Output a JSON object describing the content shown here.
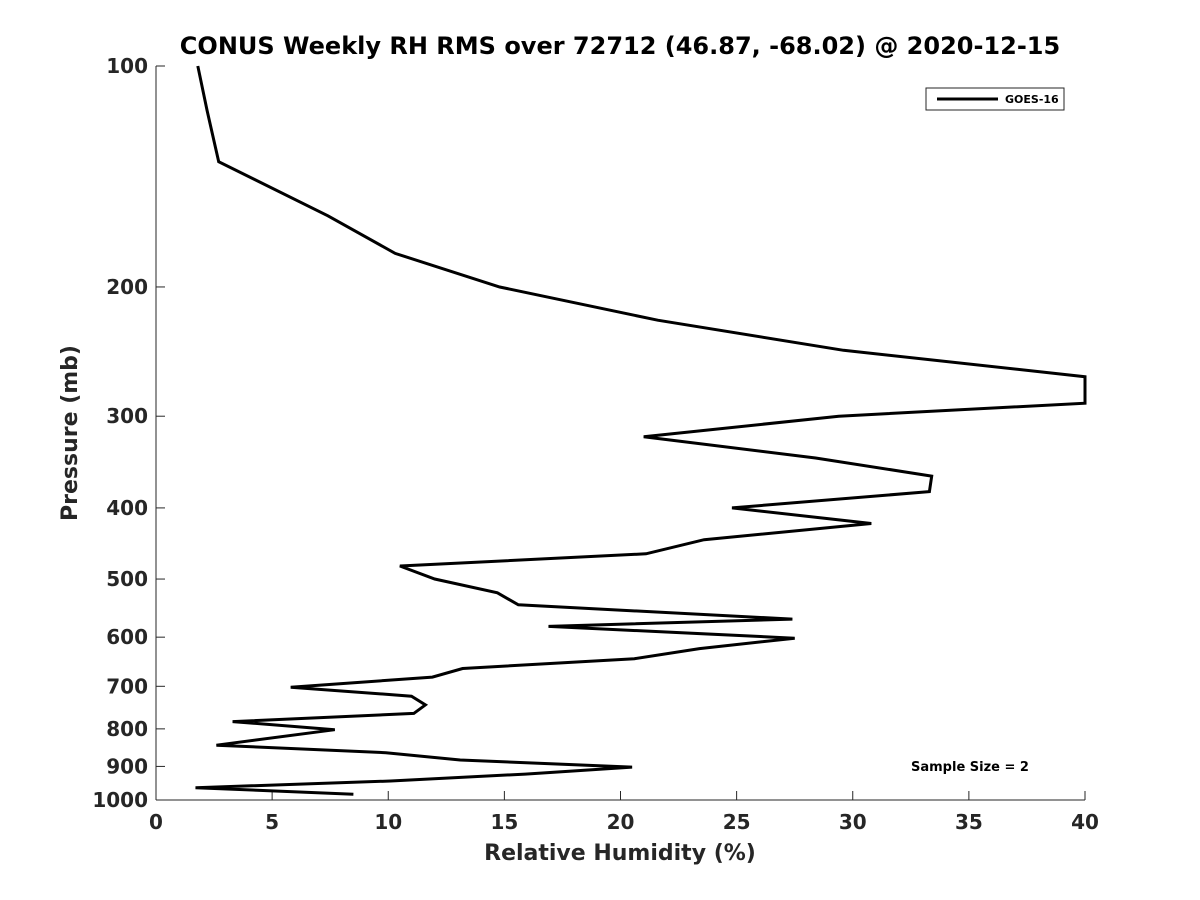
{
  "chart_data": {
    "type": "line",
    "title": "CONUS Weekly RH RMS over 72712 (46.87, -68.02) @ 2020-12-15",
    "xlabel": "Relative Humidity (%)",
    "ylabel": "Pressure (mb)",
    "xlim": [
      0,
      40
    ],
    "ylim": [
      100,
      1000
    ],
    "y_scale": "log",
    "y_reversed": true,
    "xticks": [
      0,
      5,
      10,
      15,
      20,
      25,
      30,
      35,
      40
    ],
    "yticks": [
      100,
      200,
      300,
      400,
      500,
      600,
      700,
      800,
      900,
      1000
    ],
    "grid": false,
    "legend_position": "top-right",
    "annotation": "Sample Size = 2",
    "series": [
      {
        "name": "GOES-16",
        "color": "#000000",
        "points": [
          [
            1.8,
            100
          ],
          [
            2.2,
            115
          ],
          [
            2.7,
            135
          ],
          [
            7.4,
            160
          ],
          [
            10.3,
            180
          ],
          [
            14.8,
            200
          ],
          [
            21.6,
            222
          ],
          [
            29.6,
            244
          ],
          [
            40.0,
            265
          ],
          [
            40.0,
            288
          ],
          [
            29.4,
            300
          ],
          [
            21.0,
            320
          ],
          [
            28.4,
            342
          ],
          [
            33.4,
            362
          ],
          [
            33.3,
            380
          ],
          [
            24.8,
            400
          ],
          [
            30.8,
            420
          ],
          [
            23.6,
            442
          ],
          [
            21.1,
            462
          ],
          [
            10.5,
            480
          ],
          [
            12.0,
            500
          ],
          [
            14.7,
            522
          ],
          [
            15.6,
            542
          ],
          [
            27.4,
            567
          ],
          [
            16.9,
            580
          ],
          [
            27.5,
            602
          ],
          [
            23.4,
            622
          ],
          [
            20.6,
            642
          ],
          [
            13.2,
            662
          ],
          [
            11.9,
            680
          ],
          [
            5.8,
            702
          ],
          [
            11.0,
            722
          ],
          [
            11.6,
            742
          ],
          [
            11.1,
            762
          ],
          [
            3.3,
            782
          ],
          [
            7.7,
            802
          ],
          [
            2.6,
            842
          ],
          [
            9.9,
            862
          ],
          [
            13.1,
            882
          ],
          [
            20.5,
            902
          ],
          [
            15.9,
            922
          ],
          [
            10.1,
            942
          ],
          [
            1.7,
            962
          ],
          [
            8.5,
            982
          ]
        ]
      }
    ]
  }
}
